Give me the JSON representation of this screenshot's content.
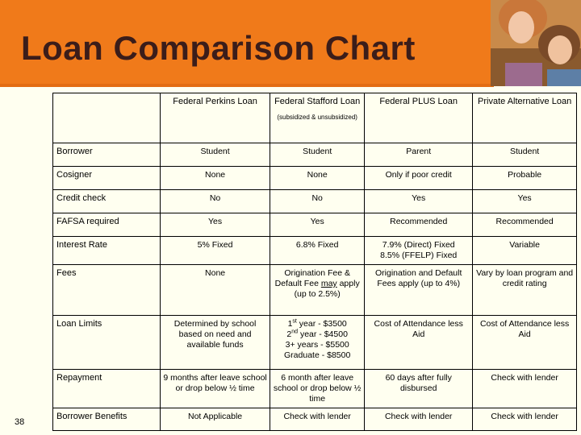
{
  "slide": {
    "title": "Loan Comparison Chart",
    "number": "38"
  },
  "table": {
    "headers": {
      "perkins": "Federal Perkins Loan",
      "stafford": "Federal Stafford Loan",
      "stafford_note": "(subsidized & unsubsidized)",
      "plus": "Federal PLUS Loan",
      "private": "Private Alternative Loan"
    },
    "rows": {
      "borrower": {
        "label": "Borrower",
        "perkins": "Student",
        "stafford": "Student",
        "plus": "Parent",
        "private": "Student"
      },
      "cosigner": {
        "label": "Cosigner",
        "perkins": "None",
        "stafford": "None",
        "plus": "Only if poor credit",
        "private": "Probable"
      },
      "credit_check": {
        "label": "Credit check",
        "perkins": "No",
        "stafford": "No",
        "plus": "Yes",
        "private": "Yes"
      },
      "fafsa": {
        "label": "FAFSA required",
        "perkins": "Yes",
        "stafford": "Yes",
        "plus": "Recommended",
        "private": "Recommended"
      },
      "interest": {
        "label": "Interest Rate",
        "perkins": "5% Fixed",
        "stafford": "6.8% Fixed",
        "plus_line1": "7.9% (Direct) Fixed",
        "plus_line2": "8.5% (FFELP) Fixed",
        "private": "Variable"
      },
      "fees": {
        "label": "Fees",
        "perkins": "None",
        "stafford_a": "Origination Fee & Default Fee ",
        "stafford_may": "may",
        "stafford_b": " apply (up to 2.5%)",
        "plus": "Origination and Default Fees apply (up to 4%)",
        "private": "Vary by loan program and credit rating"
      },
      "limits": {
        "label": "Loan Limits",
        "perkins": "Determined by school based on need and available funds",
        "stafford_y1_num": "1",
        "stafford_y1_sup": "st",
        "stafford_y1_rest": " year - $3500",
        "stafford_y2_num": "2",
        "stafford_y2_sup": "nd",
        "stafford_y2_rest": " year - $4500",
        "stafford_y3": "3+ years - $5500",
        "stafford_grad": "Graduate - $8500",
        "plus": "Cost of Attendance less Aid",
        "private": "Cost of Attendance less Aid"
      },
      "repayment": {
        "label": "Repayment",
        "perkins": "9 months after leave school or drop below ½ time",
        "stafford": "6 month after leave school or drop below ½ time",
        "plus": "60 days after fully disbursed",
        "private": "Check with lender"
      },
      "benefits": {
        "label": "Borrower Benefits",
        "perkins": "Not Applicable",
        "stafford": "Check with lender",
        "plus": "Check with lender",
        "private": "Check with lender"
      }
    }
  },
  "colors": {
    "banner": "#f07a1a",
    "title": "#3b1d1a",
    "background": "#fffff0"
  },
  "icons": {
    "photo": "students-photo"
  }
}
